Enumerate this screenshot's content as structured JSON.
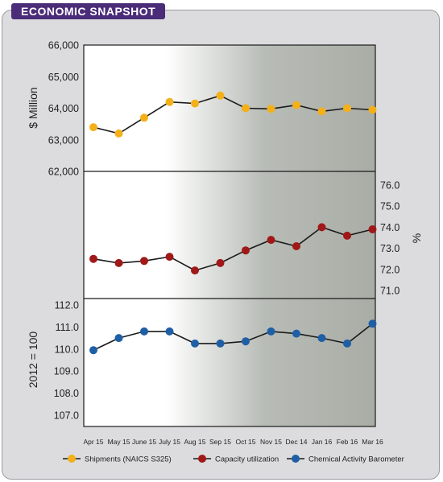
{
  "header": {
    "title": "ECONOMIC SNAPSHOT"
  },
  "chart_data": {
    "type": "line",
    "categories": [
      "Apr 15",
      "May 15",
      "June 15",
      "July 15",
      "Aug 15",
      "Sep 15",
      "Oct 15",
      "Nov 15",
      "Dec 14",
      "Jan 16",
      "Feb 16",
      "Mar 16"
    ],
    "panels": [
      {
        "ylabel": "$ Million",
        "axis_side": "left",
        "ylim": [
          62000,
          66000
        ],
        "ticks": [
          "66,000",
          "65,000",
          "64,000",
          "63,000",
          "62,000"
        ],
        "tick_values": [
          66000,
          65000,
          64000,
          63000,
          62000
        ],
        "series": [
          {
            "name": "Shipments (NAICS S325)",
            "color": "#f4b019",
            "values": [
              63400,
              63200,
              63700,
              64200,
              64150,
              64400,
              64000,
              63980,
              64100,
              63900,
              64000,
              63950
            ]
          }
        ]
      },
      {
        "ylabel": "%",
        "axis_side": "right",
        "ylim": [
          70.3,
          76.3
        ],
        "ticks": [
          "76.0",
          "75.0",
          "74.0",
          "73.0",
          "72.0",
          "71.0"
        ],
        "tick_values": [
          76,
          75,
          74,
          73,
          72,
          71
        ],
        "series": [
          {
            "name": "Capacity utilization",
            "color": "#a01818",
            "values": [
              72.5,
              72.3,
              72.4,
              72.6,
              71.95,
              72.3,
              72.9,
              73.4,
              73.1,
              74.0,
              73.6,
              73.9
            ]
          }
        ]
      },
      {
        "ylabel": "2012 = 100",
        "axis_side": "left",
        "ylim": [
          106.5,
          112.0
        ],
        "ticks": [
          "112.0",
          "111.0",
          "110.0",
          "109.0",
          "108.0",
          "107.0"
        ],
        "tick_values": [
          112,
          111,
          110,
          109,
          108,
          107
        ],
        "series": [
          {
            "name": "Chemical Activity Barometer",
            "color": "#1f5fa6",
            "values": [
              109.95,
              110.5,
              110.8,
              110.8,
              110.25,
              110.25,
              110.35,
              110.8,
              110.7,
              110.5,
              110.25,
              111.15
            ]
          }
        ]
      }
    ],
    "legend": {
      "placement": "bottom",
      "items": [
        {
          "label": "Shipments (NAICS S325)",
          "color": "#f4b019"
        },
        {
          "label": "Capacity utilization",
          "color": "#a01818"
        },
        {
          "label": "Chemical Activity Barometer",
          "color": "#1f5fa6"
        }
      ]
    }
  }
}
